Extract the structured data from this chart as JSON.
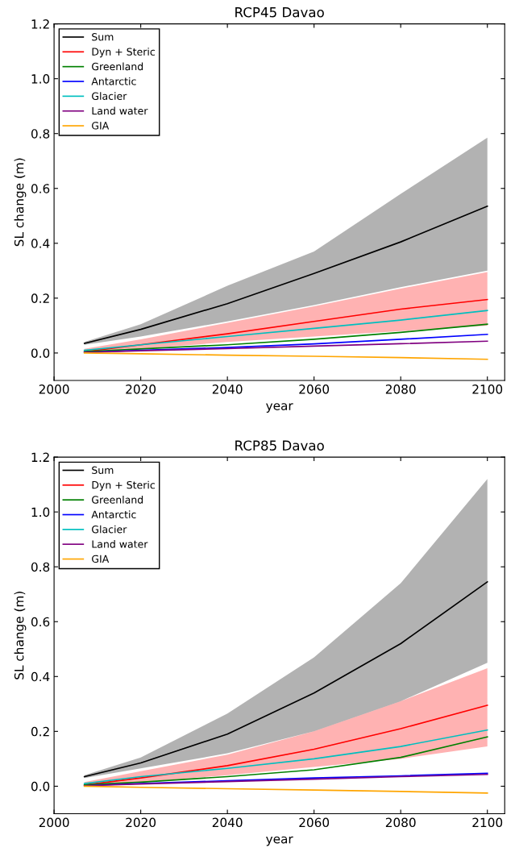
{
  "chart_data": [
    {
      "type": "line",
      "title": "RCP45 Davao",
      "xlabel": "year",
      "ylabel": "SL change (m)",
      "x": [
        2007,
        2020,
        2040,
        2060,
        2080,
        2100
      ],
      "series": [
        {
          "name": "Sum",
          "color": "#000000",
          "values": [
            0.035,
            0.086,
            0.18,
            0.29,
            0.405,
            0.535
          ],
          "lower": [
            0.03,
            0.06,
            0.115,
            0.175,
            0.24,
            0.3
          ],
          "upper": [
            0.04,
            0.105,
            0.245,
            0.37,
            0.58,
            0.785
          ]
        },
        {
          "name": "Dyn + Steric",
          "color": "#ff0000",
          "values": [
            0.005,
            0.03,
            0.07,
            0.115,
            0.16,
            0.195
          ],
          "lower": [
            0.0,
            0.015,
            0.04,
            0.06,
            0.08,
            0.1
          ],
          "upper": [
            0.015,
            0.05,
            0.11,
            0.17,
            0.235,
            0.295
          ]
        },
        {
          "name": "Greenland",
          "color": "#008000",
          "values": [
            0.005,
            0.015,
            0.03,
            0.05,
            0.075,
            0.105
          ]
        },
        {
          "name": "Antarctic",
          "color": "#0000ff",
          "values": [
            0.002,
            0.01,
            0.02,
            0.033,
            0.05,
            0.068
          ]
        },
        {
          "name": "Glacier",
          "color": "#00bfbf",
          "values": [
            0.01,
            0.03,
            0.06,
            0.09,
            0.12,
            0.155
          ]
        },
        {
          "name": "Land water",
          "color": "#800080",
          "values": [
            0.002,
            0.008,
            0.016,
            0.025,
            0.034,
            0.043
          ]
        },
        {
          "name": "GIA",
          "color": "#ffa500",
          "values": [
            0.0,
            -0.003,
            -0.008,
            -0.012,
            -0.017,
            -0.023
          ]
        }
      ],
      "xlim": [
        2000,
        2104
      ],
      "xticks": [
        2000,
        2020,
        2040,
        2060,
        2080,
        2100
      ],
      "ylim": [
        -0.1,
        1.2
      ],
      "yticks": [
        {
          "value": 0.0,
          "label": "0.0"
        },
        {
          "value": 0.2,
          "label": "0.2"
        },
        {
          "value": 0.4,
          "label": "0.4"
        },
        {
          "value": 0.6,
          "label": "0.6"
        },
        {
          "value": 0.8,
          "label": "0.8"
        },
        {
          "value": 1.0,
          "label": "1.0"
        },
        {
          "value": 1.2,
          "label": "1.2"
        }
      ],
      "legend": "top left",
      "grid": false
    },
    {
      "type": "line",
      "title": "RCP85 Davao",
      "xlabel": "year",
      "ylabel": "SL change (m)",
      "x": [
        2007,
        2020,
        2040,
        2060,
        2080,
        2100
      ],
      "series": [
        {
          "name": "Sum",
          "color": "#000000",
          "values": [
            0.035,
            0.085,
            0.19,
            0.34,
            0.52,
            0.745
          ],
          "lower": [
            0.03,
            0.065,
            0.12,
            0.2,
            0.31,
            0.45
          ],
          "upper": [
            0.04,
            0.105,
            0.265,
            0.47,
            0.74,
            1.12
          ]
        },
        {
          "name": "Dyn + Steric",
          "color": "#ff0000",
          "values": [
            0.005,
            0.03,
            0.075,
            0.135,
            0.21,
            0.295
          ],
          "lower": [
            0.0,
            0.015,
            0.04,
            0.07,
            0.1,
            0.145
          ],
          "upper": [
            0.015,
            0.055,
            0.115,
            0.2,
            0.31,
            0.43
          ]
        },
        {
          "name": "Greenland",
          "color": "#008000",
          "values": [
            0.005,
            0.015,
            0.035,
            0.06,
            0.105,
            0.18
          ]
        },
        {
          "name": "Antarctic",
          "color": "#0000ff",
          "values": [
            0.002,
            0.01,
            0.02,
            0.03,
            0.038,
            0.047
          ]
        },
        {
          "name": "Glacier",
          "color": "#00bfbf",
          "values": [
            0.01,
            0.035,
            0.065,
            0.1,
            0.145,
            0.205
          ]
        },
        {
          "name": "Land water",
          "color": "#800080",
          "values": [
            0.002,
            0.008,
            0.017,
            0.026,
            0.035,
            0.043
          ]
        },
        {
          "name": "GIA",
          "color": "#ffa500",
          "values": [
            0.0,
            -0.004,
            -0.009,
            -0.014,
            -0.019,
            -0.025
          ]
        }
      ],
      "xlim": [
        2000,
        2104
      ],
      "xticks": [
        2000,
        2020,
        2040,
        2060,
        2080,
        2100
      ],
      "ylim": [
        -0.1,
        1.2
      ],
      "yticks": [
        {
          "value": 0.0,
          "label": "0.0"
        },
        {
          "value": 0.2,
          "label": "0.2"
        },
        {
          "value": 0.4,
          "label": "0.4"
        },
        {
          "value": 0.6,
          "label": "0.6"
        },
        {
          "value": 0.8,
          "label": "0.8"
        },
        {
          "value": 1.0,
          "label": "1.0"
        },
        {
          "value": 1.2,
          "label": "1.2"
        }
      ],
      "legend": "top left",
      "grid": false
    }
  ]
}
